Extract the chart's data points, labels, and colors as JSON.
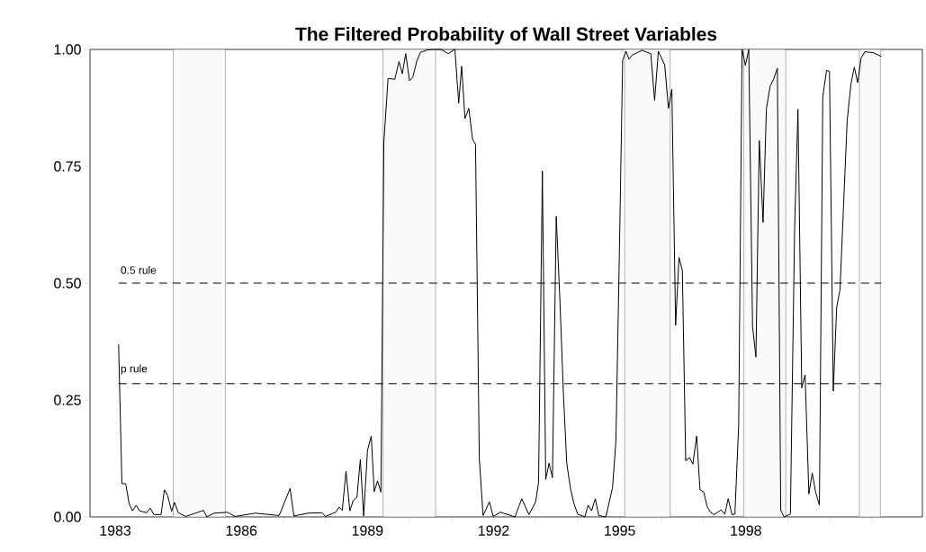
{
  "chart_data": {
    "type": "line",
    "title": "The Filtered Probability of Wall Street Variables",
    "xlim": [
      1982.4,
      2002.2
    ],
    "ylim": [
      0,
      1
    ],
    "xticks": [
      {
        "value": 1983,
        "label": "1983"
      },
      {
        "value": 1984,
        "label": null
      },
      {
        "value": 1985,
        "label": null
      },
      {
        "value": 1986,
        "label": "1986"
      },
      {
        "value": 1987,
        "label": null
      },
      {
        "value": 1988,
        "label": null
      },
      {
        "value": 1989,
        "label": "1989"
      },
      {
        "value": 1990,
        "label": null
      },
      {
        "value": 1991,
        "label": null
      },
      {
        "value": 1992,
        "label": "1992"
      },
      {
        "value": 1993,
        "label": null
      },
      {
        "value": 1994,
        "label": null
      },
      {
        "value": 1995,
        "label": "1995"
      },
      {
        "value": 1996,
        "label": null
      },
      {
        "value": 1997,
        "label": null
      },
      {
        "value": 1998,
        "label": "1998"
      },
      {
        "value": 1999,
        "label": null
      },
      {
        "value": 2000,
        "label": null
      },
      {
        "value": 2001,
        "label": null
      }
    ],
    "yticks": [
      {
        "value": 0,
        "label": "0.00"
      },
      {
        "value": 0.25,
        "label": "0.25"
      },
      {
        "value": 0.5,
        "label": "0.50"
      },
      {
        "value": 0.75,
        "label": "0.75"
      },
      {
        "value": 1,
        "label": "1.00"
      }
    ],
    "marker": "none",
    "line_style": "solid",
    "bands": [
      {
        "axis": "x",
        "from": 1984.38,
        "to": 1985.62,
        "color": "#fafafa"
      },
      {
        "axis": "x",
        "from": 1989.37,
        "to": 1990.62,
        "color": "#fafafa"
      },
      {
        "axis": "x",
        "from": 1995.12,
        "to": 1996.2,
        "color": "#fafafa"
      },
      {
        "axis": "x",
        "from": 1997.95,
        "to": 1998.95,
        "color": "#fafafa"
      },
      {
        "axis": "x",
        "from": 2000.7,
        "to": 2001.2,
        "color": "#fafafa"
      }
    ],
    "ref_lines": [
      {
        "axis": "y",
        "value": 0.5,
        "label": "0.5 rule",
        "line_style": "dashed",
        "color": "#000000"
      },
      {
        "axis": "y",
        "value": 0.285,
        "label": "p rule",
        "line_style": "dashed",
        "color": "#000000"
      }
    ],
    "series": [
      {
        "color": "#000000",
        "x": [
          1983.08,
          1983.16,
          1983.25,
          1983.33,
          1983.41,
          1983.5,
          1983.58,
          1983.75,
          1983.83,
          1983.92,
          1984.09,
          1984.17,
          1984.25,
          1984.34,
          1984.41,
          1984.5,
          1984.68,
          1985.1,
          1985.18,
          1985.35,
          1985.67,
          1985.85,
          1986.34,
          1986.9,
          1987.16,
          1987.25,
          1987.58,
          1987.92,
          1988.0,
          1988.24,
          1988.33,
          1988.4,
          1988.49,
          1988.58,
          1988.66,
          1988.75,
          1988.83,
          1988.91,
          1989.0,
          1989.09,
          1989.16,
          1989.24,
          1989.32,
          1989.39,
          1989.49,
          1989.65,
          1989.75,
          1989.83,
          1989.91,
          1990.0,
          1990.08,
          1990.17,
          1990.26,
          1990.43,
          1990.6,
          1990.75,
          1990.92,
          1991.08,
          1991.17,
          1991.24,
          1991.32,
          1991.41,
          1991.5,
          1991.57,
          1991.66,
          1991.75,
          1991.9,
          1991.99,
          1992.16,
          1992.51,
          1992.67,
          1992.84,
          1993.0,
          1993.07,
          1993.16,
          1993.24,
          1993.32,
          1993.4,
          1993.49,
          1993.58,
          1993.66,
          1993.74,
          1993.83,
          1993.91,
          1994.0,
          1994.17,
          1994.25,
          1994.33,
          1994.42,
          1994.5,
          1994.67,
          1994.83,
          1994.91,
          1994.99,
          1995.07,
          1995.15,
          1995.22,
          1995.3,
          1995.53,
          1995.74,
          1995.83,
          1995.92,
          1996.07,
          1996.16,
          1996.24,
          1996.33,
          1996.41,
          1996.49,
          1996.57,
          1996.66,
          1996.74,
          1996.83,
          1996.91,
          1997.0,
          1997.08,
          1997.16,
          1997.25,
          1997.41,
          1997.5,
          1997.58,
          1997.67,
          1997.74,
          1997.83,
          1997.91,
          1997.99,
          1998.07,
          1998.16,
          1998.24,
          1998.32,
          1998.41,
          1998.49,
          1998.58,
          1998.66,
          1998.75,
          1998.83,
          1998.91,
          1999.06,
          1999.16,
          1999.24,
          1999.33,
          1999.41,
          1999.5,
          1999.58,
          1999.66,
          1999.75,
          1999.83,
          1999.92,
          1999.99,
          2000.08,
          2000.16,
          2000.24,
          2000.33,
          2000.41,
          2000.5,
          2000.58,
          2000.66,
          2000.74,
          2000.83,
          2001.03,
          2001.22
        ],
        "values": [
          0.369,
          0.071,
          0.071,
          0.029,
          0.013,
          0.025,
          0.013,
          0.009,
          0.019,
          0.005,
          0.005,
          0.058,
          0.045,
          0.012,
          0.031,
          0.009,
          0.001,
          0.014,
          0,
          0.008,
          0.01,
          0.001,
          0.008,
          0.003,
          0.061,
          0.002,
          0.008,
          0.009,
          0.001,
          0.01,
          0.021,
          0.014,
          0.098,
          0.013,
          0.035,
          0.042,
          0.123,
          0.002,
          0.142,
          0.173,
          0.054,
          0.077,
          0.053,
          0.802,
          0.938,
          0.936,
          0.974,
          0.948,
          0.991,
          0.933,
          0.941,
          0.974,
          0.994,
          0.999,
          1.0,
          1.0,
          0.991,
          1.0,
          0.885,
          0.964,
          0.852,
          0.874,
          0.808,
          0.797,
          0.125,
          0.003,
          0.032,
          0.001,
          0.01,
          0,
          0.039,
          0.005,
          0.032,
          0.074,
          0.74,
          0.08,
          0.115,
          0.084,
          0.643,
          0.458,
          0.266,
          0.115,
          0.06,
          0.029,
          0.006,
          0,
          0.025,
          0.013,
          0.039,
          0.003,
          0,
          0.063,
          0.163,
          0.555,
          0.977,
          0.996,
          0.979,
          0.988,
          0.998,
          0.991,
          0.891,
          0.996,
          0.967,
          0.874,
          0.915,
          0.41,
          0.555,
          0.527,
          0.12,
          0.127,
          0.113,
          0.173,
          0.058,
          0.053,
          0.022,
          0.01,
          0.005,
          0.015,
          0.006,
          0.039,
          0.005,
          0.006,
          0.197,
          1.0,
          0.966,
          1.0,
          0.407,
          0.342,
          0.805,
          0.63,
          0.874,
          0.922,
          0.936,
          0.96,
          0.015,
          0,
          0.006,
          0.616,
          0.872,
          0.276,
          0.304,
          0.049,
          0.094,
          0.053,
          0.025,
          0.898,
          0.955,
          0.953,
          0.269,
          0.448,
          0.486,
          0.678,
          0.847,
          0.926,
          0.962,
          0.929,
          0.981,
          0.995,
          0.993,
          0.985
        ]
      }
    ]
  }
}
